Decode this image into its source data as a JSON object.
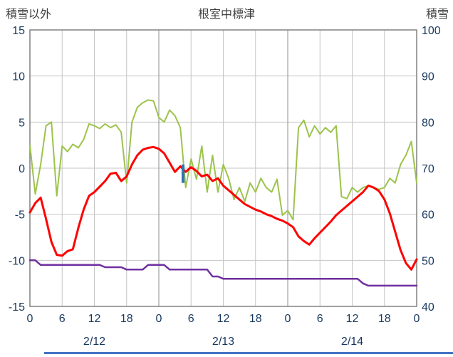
{
  "header": {
    "left_axis_title": "積雪以外",
    "chart_title": "根室中標津",
    "right_axis_title": "積雪"
  },
  "chart_data": {
    "type": "line",
    "title": "根室中標津",
    "tick_color": "#17375E",
    "title_color": "#3F3F3F",
    "grid": {
      "minor_color": "#C6C6C6",
      "major_color": "#8F8F8F",
      "border_color": "#808080"
    },
    "left_axis": {
      "label": "積雪以外",
      "min": -15,
      "max": 15,
      "ticks": [
        15,
        10,
        5,
        0,
        -5,
        -10,
        -15
      ]
    },
    "right_axis": {
      "label": "積雪",
      "min": 40,
      "max": 100,
      "ticks": [
        100,
        90,
        80,
        70,
        60,
        50,
        40
      ]
    },
    "x_axis": {
      "hours_total": 72,
      "tick_interval": 6,
      "tick_labels": [
        "0",
        "6",
        "12",
        "18",
        "0",
        "6",
        "12",
        "18",
        "0",
        "6",
        "12",
        "18",
        "0"
      ],
      "date_labels": [
        "2/12",
        "2/13",
        "2/14"
      ]
    },
    "series": [
      {
        "name": "green-line",
        "color": "#9CC34B",
        "axis": "left",
        "width": 2,
        "values": [
          2.5,
          -2.8,
          0.4,
          4.6,
          5.0,
          -3.0,
          2.4,
          1.8,
          2.6,
          2.2,
          3.1,
          4.8,
          4.6,
          4.3,
          4.8,
          4.4,
          4.7,
          3.9,
          -1.6,
          5.0,
          6.6,
          7.1,
          7.4,
          7.3,
          5.5,
          5.0,
          6.3,
          5.7,
          4.4,
          -2.1,
          1.0,
          -1.2,
          2.4,
          -2.6,
          1.4,
          -2.6,
          0.4,
          -1.1,
          -3.4,
          -2.1,
          -3.6,
          -1.6,
          -2.6,
          -1.1,
          -2.1,
          -2.6,
          -1.2,
          -5.1,
          -4.6,
          -5.6,
          4.4,
          5.2,
          3.4,
          4.6,
          3.7,
          4.4,
          3.9,
          4.6,
          -3.1,
          -3.3,
          -2.1,
          -2.6,
          -2.1,
          -1.9,
          -2.1,
          -2.3,
          -2.1,
          -1.1,
          -1.6,
          0.4,
          1.4,
          2.9,
          -1.6
        ]
      },
      {
        "name": "red-line",
        "color": "#FF0000",
        "axis": "left",
        "width": 3,
        "values": [
          -4.8,
          -3.8,
          -3.2,
          -5.5,
          -8.0,
          -9.4,
          -9.5,
          -9.0,
          -8.8,
          -6.5,
          -4.5,
          -3.0,
          -2.6,
          -2.0,
          -1.4,
          -0.6,
          -0.5,
          -1.4,
          -0.9,
          0.4,
          1.4,
          2.0,
          2.2,
          2.3,
          2.1,
          1.6,
          0.6,
          -0.4,
          0.2,
          -0.4,
          0.1,
          -0.3,
          -0.9,
          -0.7,
          -1.4,
          -1.1,
          -1.9,
          -2.4,
          -2.9,
          -3.4,
          -3.9,
          -4.2,
          -4.5,
          -4.7,
          -5.0,
          -5.2,
          -5.5,
          -5.7,
          -6.0,
          -6.4,
          -7.4,
          -7.9,
          -8.3,
          -7.6,
          -7.0,
          -6.4,
          -5.8,
          -5.1,
          -4.6,
          -4.1,
          -3.6,
          -3.1,
          -2.6,
          -1.9,
          -2.1,
          -2.5,
          -3.4,
          -4.9,
          -6.9,
          -8.9,
          -10.3,
          -11.0,
          -9.9
        ]
      },
      {
        "name": "purple-line",
        "color": "#7030A0",
        "axis": "right",
        "width": 2.5,
        "values": [
          50,
          50,
          49,
          49,
          49,
          49,
          49,
          49,
          49,
          49,
          49,
          49,
          49,
          49,
          48.5,
          48.5,
          48.5,
          48.5,
          48,
          48,
          48,
          48,
          49,
          49,
          49,
          49,
          48,
          48,
          48,
          48,
          48,
          48,
          48,
          48,
          46.5,
          46.5,
          46,
          46,
          46,
          46,
          46,
          46,
          46,
          46,
          46,
          46,
          46,
          46,
          46,
          46,
          46,
          46,
          46,
          46,
          46,
          46,
          46,
          46,
          46,
          46,
          46,
          46,
          45,
          44.5,
          44.5,
          44.5,
          44.5,
          44.5,
          44.5,
          44.5,
          44.5,
          44.5,
          44.5
        ]
      }
    ],
    "bars": [
      {
        "name": "blue-bar",
        "color": "#2E75B6",
        "axis": "left",
        "hour": 28.5,
        "top": 0.4,
        "bottom": -1.6,
        "width": 4
      }
    ]
  },
  "footer": {
    "bottom_line_color": "#4472C4"
  }
}
